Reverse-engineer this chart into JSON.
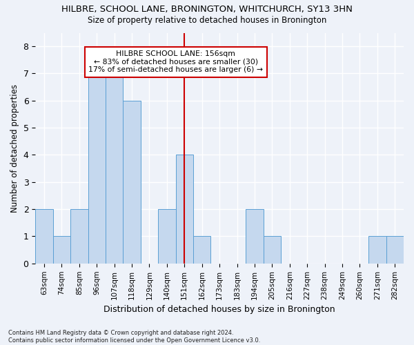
{
  "title1": "HILBRE, SCHOOL LANE, BRONINGTON, WHITCHURCH, SY13 3HN",
  "title2": "Size of property relative to detached houses in Bronington",
  "xlabel": "Distribution of detached houses by size in Bronington",
  "ylabel": "Number of detached properties",
  "categories": [
    "63sqm",
    "74sqm",
    "85sqm",
    "96sqm",
    "107sqm",
    "118sqm",
    "129sqm",
    "140sqm",
    "151sqm",
    "162sqm",
    "173sqm",
    "183sqm",
    "194sqm",
    "205sqm",
    "216sqm",
    "227sqm",
    "238sqm",
    "249sqm",
    "260sqm",
    "271sqm",
    "282sqm"
  ],
  "values": [
    2,
    1,
    2,
    7,
    7,
    6,
    0,
    2,
    4,
    1,
    0,
    0,
    2,
    1,
    0,
    0,
    0,
    0,
    0,
    1,
    1
  ],
  "bar_color": "#c5d8ee",
  "bar_edge_color": "#5a9fd4",
  "subject_label": "HILBRE SCHOOL LANE: 156sqm",
  "annotation_line1": "← 83% of detached houses are smaller (30)",
  "annotation_line2": "17% of semi-detached houses are larger (6) →",
  "annotation_box_color": "#cc0000",
  "vline_color": "#cc0000",
  "vline_x_index": 8,
  "ylim_max": 8.5,
  "yticks": [
    0,
    1,
    2,
    3,
    4,
    5,
    6,
    7,
    8
  ],
  "footer": "Contains HM Land Registry data © Crown copyright and database right 2024.\nContains public sector information licensed under the Open Government Licence v3.0.",
  "background_color": "#eef2f9",
  "grid_color": "#ffffff"
}
